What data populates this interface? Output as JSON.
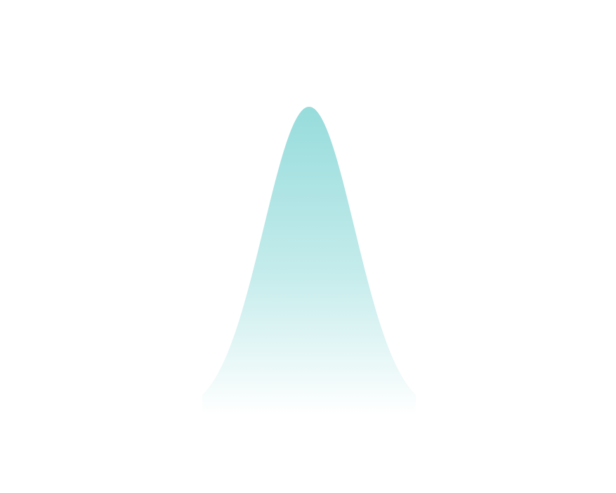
{
  "shape": {
    "kind": "bell-curve",
    "gradient_top_color": "#97dcdc",
    "gradient_mid_color": "#c6ecec",
    "gradient_bottom_color": "#ffffff"
  }
}
